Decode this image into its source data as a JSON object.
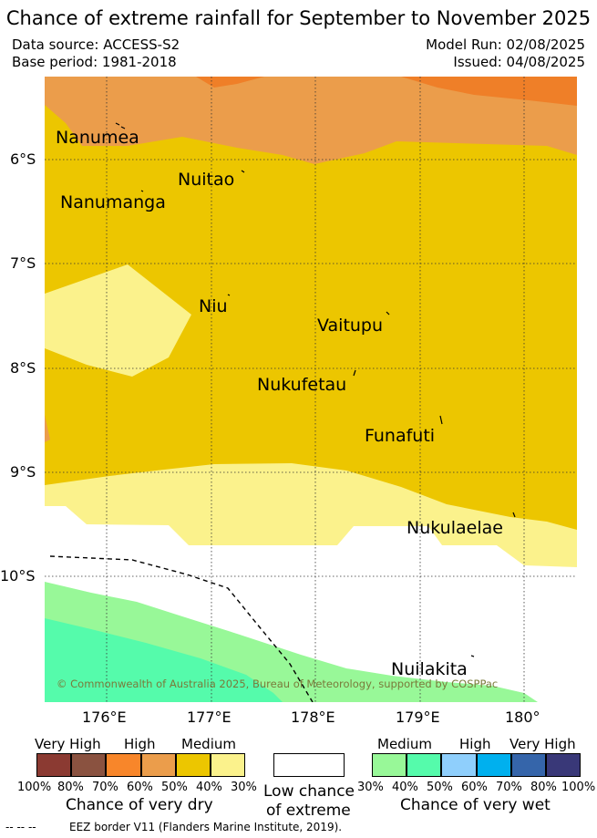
{
  "title": "Chance of extreme rainfall for September to November 2025",
  "header": {
    "data_source": "Data source: ACCESS-S2",
    "base_period": "Base period: 1981-2018",
    "model_run": "Model Run: 02/08/2025",
    "issued": "Issued: 04/08/2025"
  },
  "map": {
    "places": [
      "Nanumea",
      "Nuitao",
      "Nanumanga",
      "Niu",
      "Vaitupu",
      "Nukufetau",
      "Funafuti",
      "Nukulaelae",
      "Nuilakita"
    ],
    "lat_ticks": [
      "6°S",
      "7°S",
      "8°S",
      "9°S",
      "10°S"
    ],
    "lon_ticks": [
      "176°E",
      "177°E",
      "178°E",
      "179°E",
      "180°"
    ],
    "copyright": "© Commonwealth of Australia 2025, Bureau of Meteorology, supported by COSPPac",
    "colors": {
      "very_high_dry": "#ef7f28",
      "high_dry": "#eb9d4b",
      "medium_dry": "#ecc600",
      "low_medium_dry": "#fbf28c",
      "low": "#ffffff",
      "medium_wet": "#98f898",
      "medium_wet_2": "#55fbab",
      "eez_line": "#000000"
    }
  },
  "legend": {
    "dry": {
      "headers": [
        "Very High",
        "High",
        "Medium"
      ],
      "pct": [
        "100%",
        "80%",
        "70%",
        "60%",
        "50%",
        "40%",
        "30%"
      ],
      "colors": [
        "#8b3a32",
        "#8a5240",
        "#f8862a",
        "#eb9d4b",
        "#ecc600",
        "#fbf28c"
      ],
      "caption": "Chance of very dry"
    },
    "low": {
      "caption_1": "Low chance",
      "caption_2": "of extreme",
      "color": "#ffffff"
    },
    "wet": {
      "headers": [
        "Medium",
        "High",
        "Very High"
      ],
      "pct": [
        "30%",
        "40%",
        "50%",
        "60%",
        "70%",
        "80%",
        "100%"
      ],
      "colors": [
        "#98f898",
        "#55fbab",
        "#8fcffc",
        "#00b0ee",
        "#3565aa",
        "#393878"
      ],
      "caption": "Chance of very wet"
    }
  },
  "footer": {
    "eez_marker": "-- -- --",
    "eez_text": "EEZ border V11 (Flanders Marine Institute, 2019)."
  }
}
